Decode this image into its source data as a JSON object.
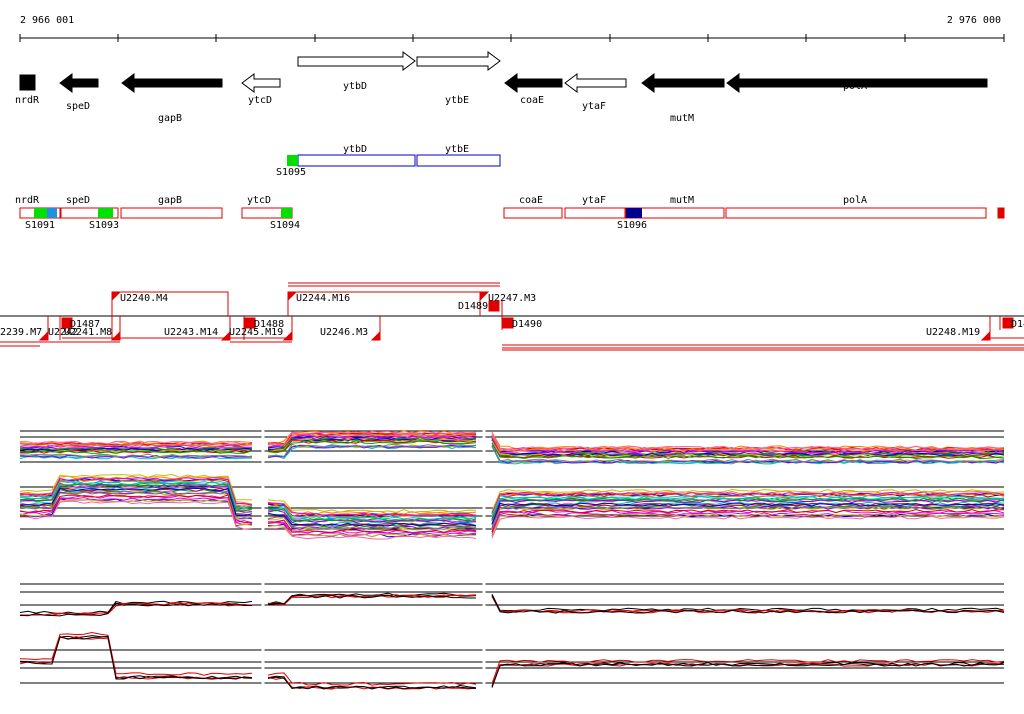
{
  "ruler": {
    "start": "2 966 001",
    "end": "2 976 000"
  },
  "gene_track": {
    "genes": [
      "nrdR",
      "speD",
      "gapB",
      "ytcD",
      "ytbD",
      "ytbE",
      "coaE",
      "ytaF",
      "mutM",
      "polA"
    ]
  },
  "forward_operons": {
    "genes": [
      "ytbD",
      "ytbE"
    ],
    "sites": [
      "S1095"
    ]
  },
  "reverse_operons": {
    "genes": [
      "nrdR",
      "speD",
      "gapB",
      "ytcD",
      "coaE",
      "ytaF",
      "mutM",
      "polA"
    ],
    "sites": [
      "S1091",
      "S1093",
      "S1094",
      "S1096"
    ]
  },
  "transcripts": {
    "labels": [
      "U2240.M4",
      "U2244.M16",
      "U2247.M3",
      "D1489",
      "D1487",
      "D1488",
      "D1490",
      "2239.M7",
      "U2242",
      "U2241.M8",
      "U2243.M14",
      "U2245.M19",
      "U2246.M3",
      "U2248.M19",
      "D14"
    ]
  }
}
